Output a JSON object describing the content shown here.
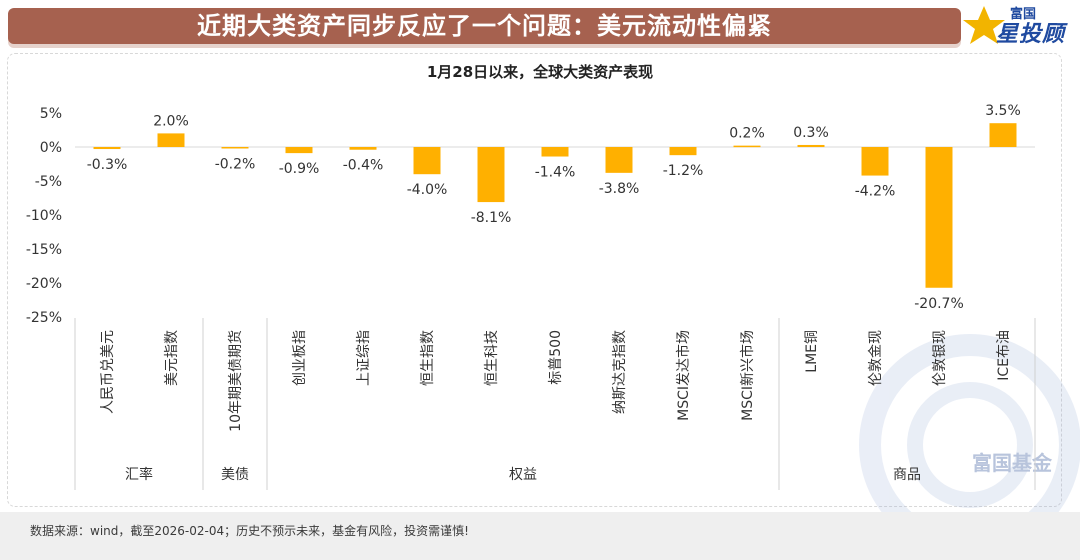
{
  "header": {
    "title": "近期大类资产同步反应了一个问题：美元流动性偏紧",
    "logo_small": "富国",
    "logo_big": "星投顾",
    "watermark": "富国基金"
  },
  "footer": {
    "note": "数据来源：wind，截至2026-02-04；历史不预示未来，基金有风险，投资需谨慎!"
  },
  "chart_data": {
    "type": "bar",
    "title": "1月28日以来，全球大类资产表现",
    "categories": [
      "人民币兑美元",
      "美元指数",
      "10年期美债期货",
      "创业板指",
      "上证综指",
      "恒生指数",
      "恒生科技",
      "标普500",
      "纳斯达克指数",
      "MSCI发达市场",
      "MSCI新兴市场",
      "LME铜",
      "伦敦金现",
      "伦敦银现",
      "ICE布油"
    ],
    "values": [
      -0.3,
      2.0,
      -0.2,
      -0.9,
      -0.4,
      -4.0,
      -8.1,
      -1.4,
      -3.8,
      -1.2,
      0.2,
      0.3,
      -4.2,
      -20.7,
      3.5
    ],
    "labels": [
      "-0.3%",
      "2.0%",
      "-0.2%",
      "-0.9%",
      "-0.4%",
      "-4.0%",
      "-8.1%",
      "-1.4%",
      "-3.8%",
      "-1.2%",
      "0.2%",
      "0.3%",
      "-4.2%",
      "-20.7%",
      "3.5%"
    ],
    "groups": [
      {
        "name": "汇率",
        "start": 0,
        "end": 1
      },
      {
        "name": "美债",
        "start": 2,
        "end": 2
      },
      {
        "name": "权益",
        "start": 3,
        "end": 10
      },
      {
        "name": "商品",
        "start": 11,
        "end": 14
      }
    ],
    "yticks": [
      5,
      0,
      -5,
      -10,
      -15,
      -20,
      -25
    ],
    "ytick_labels": [
      "5%",
      "0%",
      "-5%",
      "-10%",
      "-15%",
      "-20%",
      "-25%"
    ],
    "ylim": [
      -25,
      5
    ],
    "bar_color": "#ffb000",
    "grid": false,
    "legend": "none"
  }
}
